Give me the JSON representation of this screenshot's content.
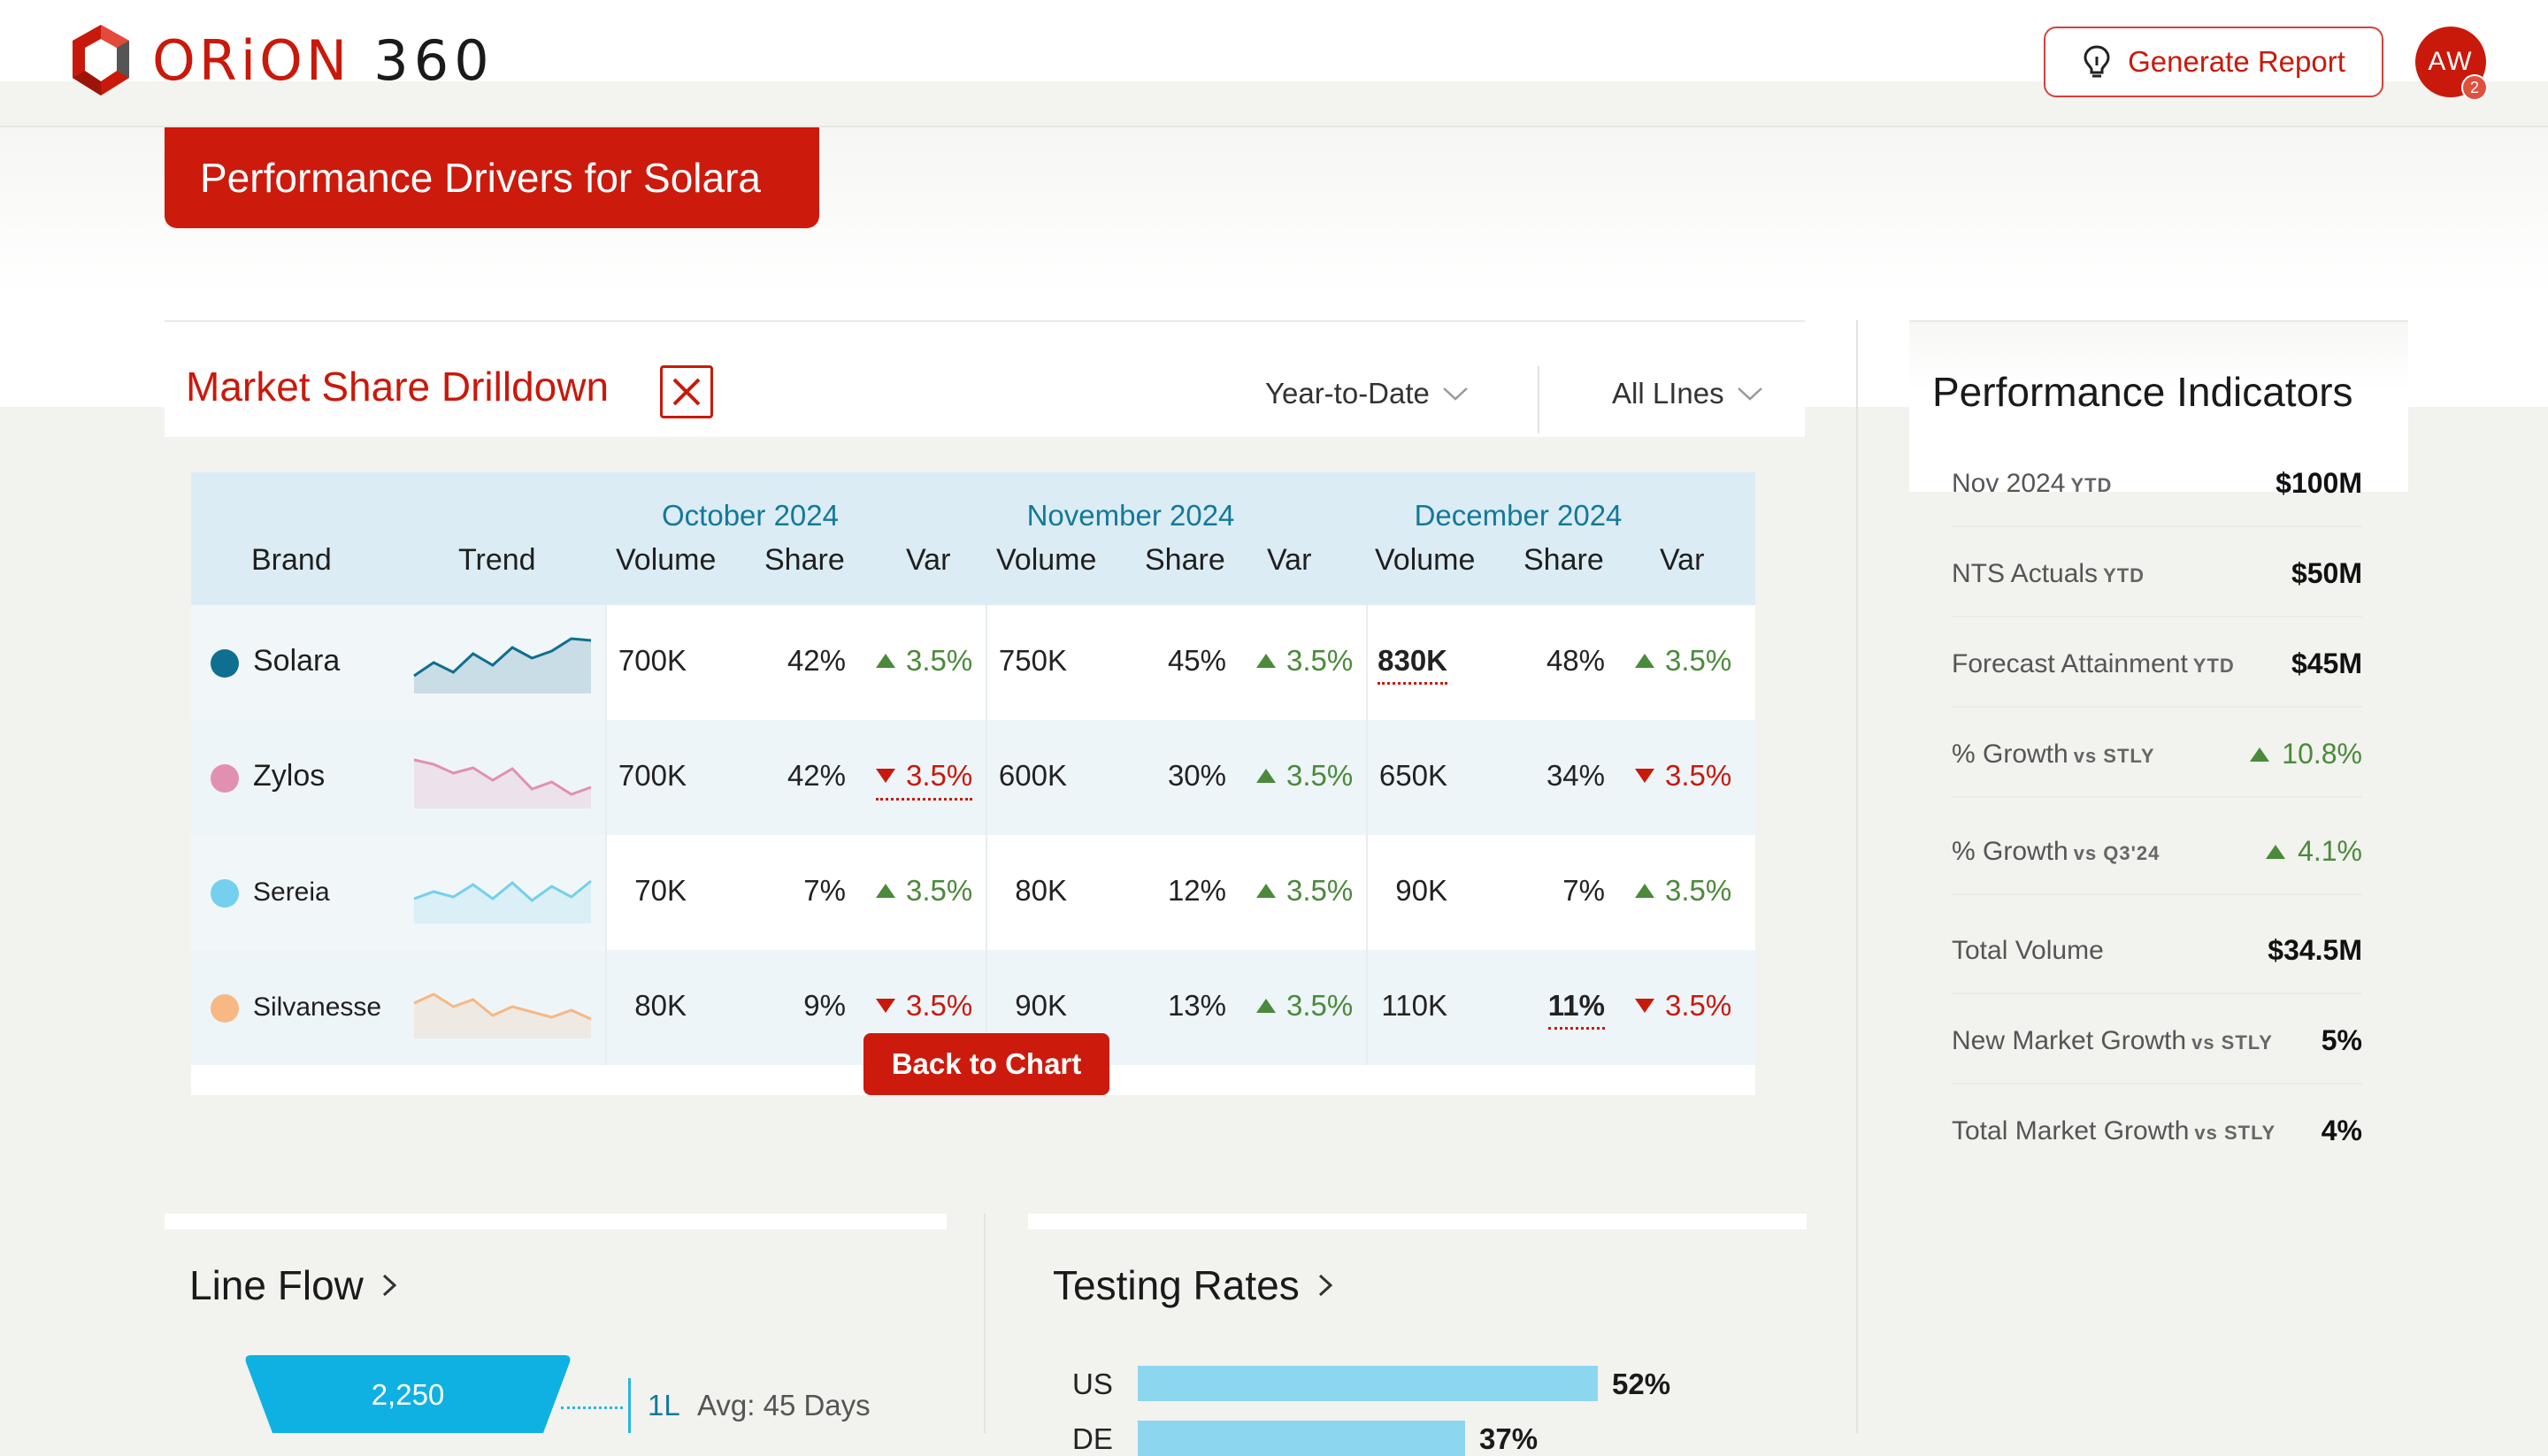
{
  "header": {
    "logo_word": "ORiON",
    "logo_num": "360",
    "generate_label": "Generate Report",
    "avatar_initials": "AW",
    "avatar_badge": "2"
  },
  "page": {
    "title": "Performance Drivers for Solara"
  },
  "drilldown": {
    "title": "Market Share Drilldown",
    "period_filter": "Year-to-Date",
    "line_filter": "All LInes",
    "back_label": "Back to Chart",
    "columns": {
      "brand": "Brand",
      "trend": "Trend",
      "volume": "Volume",
      "share": "Share",
      "var": "Var"
    },
    "months": [
      "October 2024",
      "November 2024",
      "December 2024"
    ],
    "rows": [
      {
        "brand": "Solara",
        "color": "#0e6f90",
        "trend": [
          20,
          35,
          24,
          45,
          32,
          52,
          40,
          48,
          62,
          60
        ],
        "months": [
          {
            "volume": "700K",
            "share": "42%",
            "var": "3.5%",
            "dir": "up"
          },
          {
            "volume": "750K",
            "share": "45%",
            "var": "3.5%",
            "dir": "up"
          },
          {
            "volume": "830K",
            "share": "48%",
            "var": "3.5%",
            "dir": "up"
          }
        ]
      },
      {
        "brand": "Zylos",
        "color": "#e290b2",
        "trend": [
          55,
          50,
          40,
          46,
          32,
          45,
          22,
          30,
          16,
          24
        ],
        "months": [
          {
            "volume": "700K",
            "share": "42%",
            "var": "3.5%",
            "dir": "down"
          },
          {
            "volume": "600K",
            "share": "30%",
            "var": "3.5%",
            "dir": "up"
          },
          {
            "volume": "650K",
            "share": "34%",
            "var": "3.5%",
            "dir": "down"
          }
        ]
      },
      {
        "brand": "Sereia",
        "color": "#74d0ee",
        "trend": [
          28,
          36,
          30,
          44,
          28,
          46,
          26,
          42,
          30,
          48
        ],
        "months": [
          {
            "volume": "70K",
            "share": "7%",
            "var": "3.5%",
            "dir": "up"
          },
          {
            "volume": "80K",
            "share": "12%",
            "var": "3.5%",
            "dir": "up"
          },
          {
            "volume": "90K",
            "share": "7%",
            "var": "3.5%",
            "dir": "up"
          }
        ]
      },
      {
        "brand": "Silvanesse",
        "color": "#f7b883",
        "trend": [
          40,
          50,
          36,
          44,
          26,
          36,
          30,
          24,
          32,
          22
        ],
        "months": [
          {
            "volume": "80K",
            "share": "9%",
            "var": "3.5%",
            "dir": "down"
          },
          {
            "volume": "90K",
            "share": "13%",
            "var": "3.5%",
            "dir": "up"
          },
          {
            "volume": "110K",
            "share": "11%",
            "var": "3.5%",
            "dir": "down"
          }
        ]
      }
    ]
  },
  "line_flow": {
    "title": "Line Flow",
    "funnel_value": "2,250",
    "line_label": "1L",
    "avg_label": "Avg: 45 Days"
  },
  "testing_rates": {
    "title": "Testing Rates",
    "rows": [
      {
        "label": "US",
        "pct": "52%",
        "value": 52
      },
      {
        "label": "DE",
        "pct": "37%",
        "value": 37
      }
    ]
  },
  "performance": {
    "title": "Performance Indicators",
    "items": [
      {
        "label": "Nov 2024",
        "sub": "YTD",
        "value": "$100M"
      },
      {
        "label": "NTS Actuals",
        "sub": "YTD",
        "value": "$50M"
      },
      {
        "label": "Forecast Attainment",
        "sub": "YTD",
        "value": "$45M"
      },
      {
        "label": "% Growth",
        "sub": "vs STLY",
        "value": "10.8%",
        "dir": "up"
      },
      {
        "label": "% Growth",
        "sub": "vs Q3'24",
        "value": "4.1%",
        "dir": "up"
      },
      {
        "label": "Total Volume",
        "sub": "",
        "value": "$34.5M"
      },
      {
        "label": "New Market Growth",
        "sub": "vs STLY",
        "value": "5%"
      },
      {
        "label": "Total Market Growth",
        "sub": "vs STLY",
        "value": "4%"
      }
    ]
  },
  "colors": {
    "brand_red": "#cc1a0c",
    "up_green": "#4a8a3a",
    "header_blue": "#dcecf4",
    "month_blue": "#13799a"
  }
}
